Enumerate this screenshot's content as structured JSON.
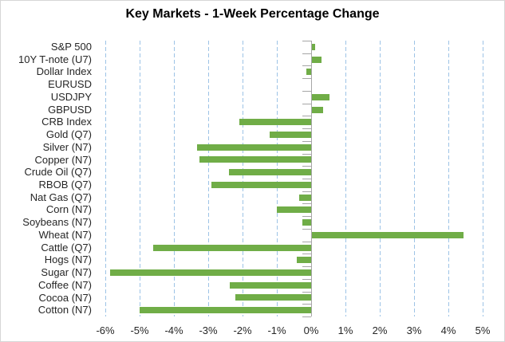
{
  "chart_data": {
    "type": "bar",
    "orientation": "horizontal",
    "title": "Key Markets - 1-Week Percentage Change",
    "categories": [
      "S&P 500",
      "10Y T-note (U7)",
      "Dollar Index",
      "EURUSD",
      "USDJPY",
      "GBPUSD",
      "CRB Index",
      "Gold (Q7)",
      "Silver (N7)",
      "Copper (N7)",
      "Crude Oil (Q7)",
      "RBOB (Q7)",
      "Nat Gas (Q7)",
      "Corn (N7)",
      "Soybeans (N7)",
      "Wheat (N7)",
      "Cattle (Q7)",
      "Hogs (N7)",
      "Sugar (N7)",
      "Coffee (N7)",
      "Cocoa (N7)",
      "Cotton (N7)"
    ],
    "values": [
      0.1,
      0.27,
      -0.13,
      0.0,
      0.51,
      0.33,
      -2.1,
      -1.2,
      -3.33,
      -3.25,
      -2.4,
      -2.9,
      -0.35,
      -1.0,
      -0.25,
      4.43,
      -4.6,
      -0.42,
      -5.87,
      -2.37,
      -2.22,
      -5.0
    ],
    "unit": "%",
    "xlabel": "",
    "ylabel": "",
    "xlim": [
      -6,
      5
    ],
    "x_ticks": [
      -6,
      -5,
      -4,
      -3,
      -2,
      -1,
      0,
      1,
      2,
      3,
      4,
      5
    ],
    "x_tick_labels": [
      "-6%",
      "-5%",
      "-4%",
      "-3%",
      "-2%",
      "-1%",
      "0%",
      "1%",
      "2%",
      "3%",
      "4%",
      "5%"
    ],
    "grid": "vertical-dashed",
    "legend": "none",
    "colors": {
      "bar": "#70AD47",
      "gridline": "#9DC3E6",
      "axis": "#A6A6A6",
      "label_text": "#262626",
      "title_text": "#000000",
      "border": "#D6D6D6",
      "background": "#FFFFFF"
    }
  }
}
